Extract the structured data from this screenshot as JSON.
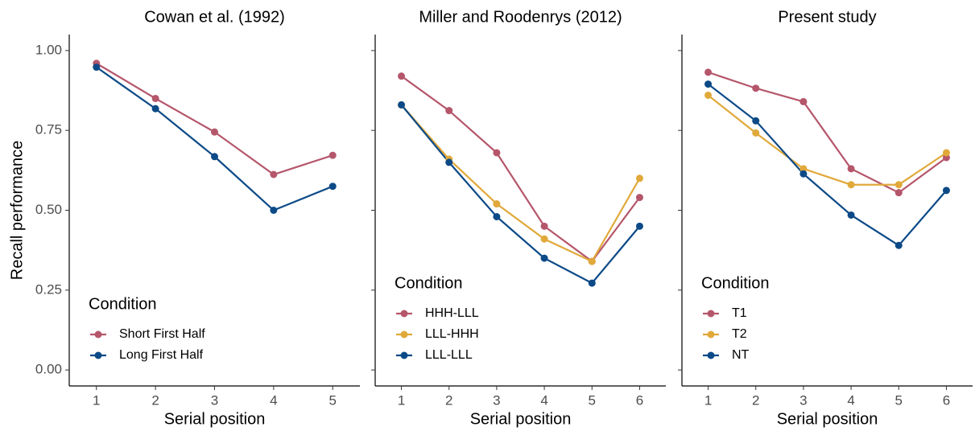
{
  "chart_data": [
    {
      "type": "line",
      "title": "Cowan et al. (1992)",
      "xlabel": "Serial position",
      "ylabel": "Recall performance",
      "x": [
        1,
        2,
        3,
        4,
        5
      ],
      "xlim": [
        0.54,
        5.46
      ],
      "xticks": [
        1,
        2,
        3,
        4,
        5
      ],
      "ylim": [
        -0.05,
        1.05
      ],
      "yticks": [
        {
          "value": 0,
          "label": "0.00"
        },
        {
          "value": 0.25,
          "label": "0.25"
        },
        {
          "value": 0.5,
          "label": "0.50"
        },
        {
          "value": 0.75,
          "label": "0.75"
        },
        {
          "value": 1,
          "label": "1.00"
        }
      ],
      "show_ytick_labels": true,
      "legend_title": "Condition",
      "legend": "bottom-left",
      "series": [
        {
          "name": "Short First Half",
          "color": "#b5566b",
          "values": [
            0.96,
            0.85,
            0.745,
            0.612,
            0.672
          ]
        },
        {
          "name": "Long First Half",
          "color": "#0c4a87",
          "values": [
            0.948,
            0.818,
            0.668,
            0.5,
            0.575
          ]
        }
      ]
    },
    {
      "type": "line",
      "title": "Miller and Roodenrys (2012)",
      "xlabel": "Serial position",
      "x": [
        1,
        2,
        3,
        4,
        5,
        6
      ],
      "xlim": [
        0.45,
        6.55
      ],
      "xticks": [
        1,
        2,
        3,
        4,
        5,
        6
      ],
      "ylim": [
        -0.05,
        1.05
      ],
      "yticks": [
        0,
        0.25,
        0.5,
        0.75,
        1
      ],
      "show_ytick_labels": false,
      "legend_title": "Condition",
      "legend": "bottom-left",
      "series": [
        {
          "name": "HHH-LLL",
          "color": "#b5566b",
          "values": [
            0.92,
            0.812,
            0.68,
            0.45,
            0.34,
            0.54
          ]
        },
        {
          "name": "LLL-HHH",
          "color": "#e0a93a",
          "values": [
            0.83,
            0.66,
            0.52,
            0.41,
            0.34,
            0.6
          ]
        },
        {
          "name": "LLL-LLL",
          "color": "#0c4a87",
          "values": [
            0.83,
            0.65,
            0.48,
            0.35,
            0.272,
            0.45
          ]
        }
      ]
    },
    {
      "type": "line",
      "title": "Present study",
      "xlabel": "Serial position",
      "x": [
        1,
        2,
        3,
        4,
        5,
        6
      ],
      "xlim": [
        0.45,
        6.55
      ],
      "xticks": [
        1,
        2,
        3,
        4,
        5,
        6
      ],
      "ylim": [
        -0.05,
        1.05
      ],
      "yticks": [
        0,
        0.25,
        0.5,
        0.75,
        1
      ],
      "show_ytick_labels": false,
      "legend_title": "Condition",
      "legend": "bottom-left",
      "series": [
        {
          "name": "T1",
          "color": "#b5566b",
          "values": [
            0.932,
            0.882,
            0.84,
            0.63,
            0.555,
            0.665
          ]
        },
        {
          "name": "T2",
          "color": "#e0a93a",
          "values": [
            0.86,
            0.742,
            0.63,
            0.58,
            0.58,
            0.68
          ]
        },
        {
          "name": "NT",
          "color": "#0c4a87",
          "values": [
            0.895,
            0.78,
            0.614,
            0.485,
            0.39,
            0.562
          ]
        }
      ]
    }
  ]
}
